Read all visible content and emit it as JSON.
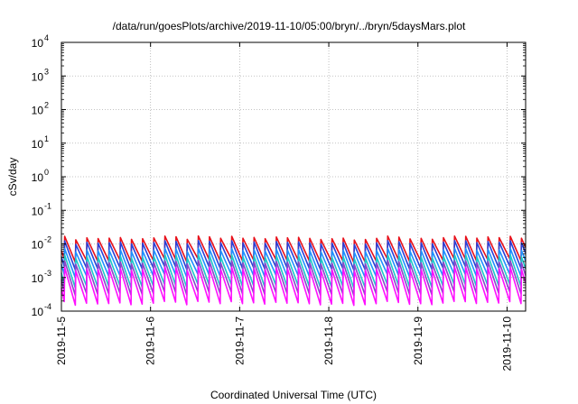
{
  "chart_data": {
    "type": "line",
    "title": "/data/run/goesPlots/archive/2019-11-10/05:00/bryn/../bryn/5daysMars.plot",
    "xlabel": "Coordinated Universal Time (UTC)",
    "ylabel": "cSv/day",
    "y_scale": "log",
    "ylim": [
      0.0001,
      10000
    ],
    "y_ticks": [
      {
        "value": 0.0001,
        "base": "10",
        "exp": "-4"
      },
      {
        "value": 0.001,
        "base": "10",
        "exp": "-3"
      },
      {
        "value": 0.01,
        "base": "10",
        "exp": "-2"
      },
      {
        "value": 0.1,
        "base": "10",
        "exp": "-1"
      },
      {
        "value": 1,
        "base": "10",
        "exp": "0"
      },
      {
        "value": 10,
        "base": "10",
        "exp": "1"
      },
      {
        "value": 100,
        "base": "10",
        "exp": "2"
      },
      {
        "value": 1000,
        "base": "10",
        "exp": "3"
      },
      {
        "value": 10000,
        "base": "10",
        "exp": "4"
      }
    ],
    "xlim": [
      "2019-11-05 00:00",
      "2019-11-10 05:00"
    ],
    "x_ticks": [
      "2019-11-5",
      "2019-11-6",
      "2019-11-7",
      "2019-11-8",
      "2019-11-9",
      "2019-11-10"
    ],
    "grid": true,
    "pattern": "sawtooth, period ~3 h, sharp rise then decay",
    "series_colors": [
      "#e8101a",
      "#2a3fd6",
      "#1e90ff",
      "#1ec8c8",
      "#8b45c8",
      "#ff10ff"
    ],
    "series": [
      {
        "color": "#e8101a",
        "peak": 0.015,
        "trough": 0.0032
      },
      {
        "color": "#2a3fd6",
        "peak": 0.011,
        "trough": 0.0019
      },
      {
        "color": "#1e90ff",
        "peak": 0.0065,
        "trough": 0.0011
      },
      {
        "color": "#1ec8c8",
        "peak": 0.0042,
        "trough": 0.00055
      },
      {
        "color": "#8b45c8",
        "peak": 0.0028,
        "trough": 0.00033
      },
      {
        "color": "#ff10ff",
        "peak": 0.0018,
        "trough": 0.00017
      }
    ]
  }
}
